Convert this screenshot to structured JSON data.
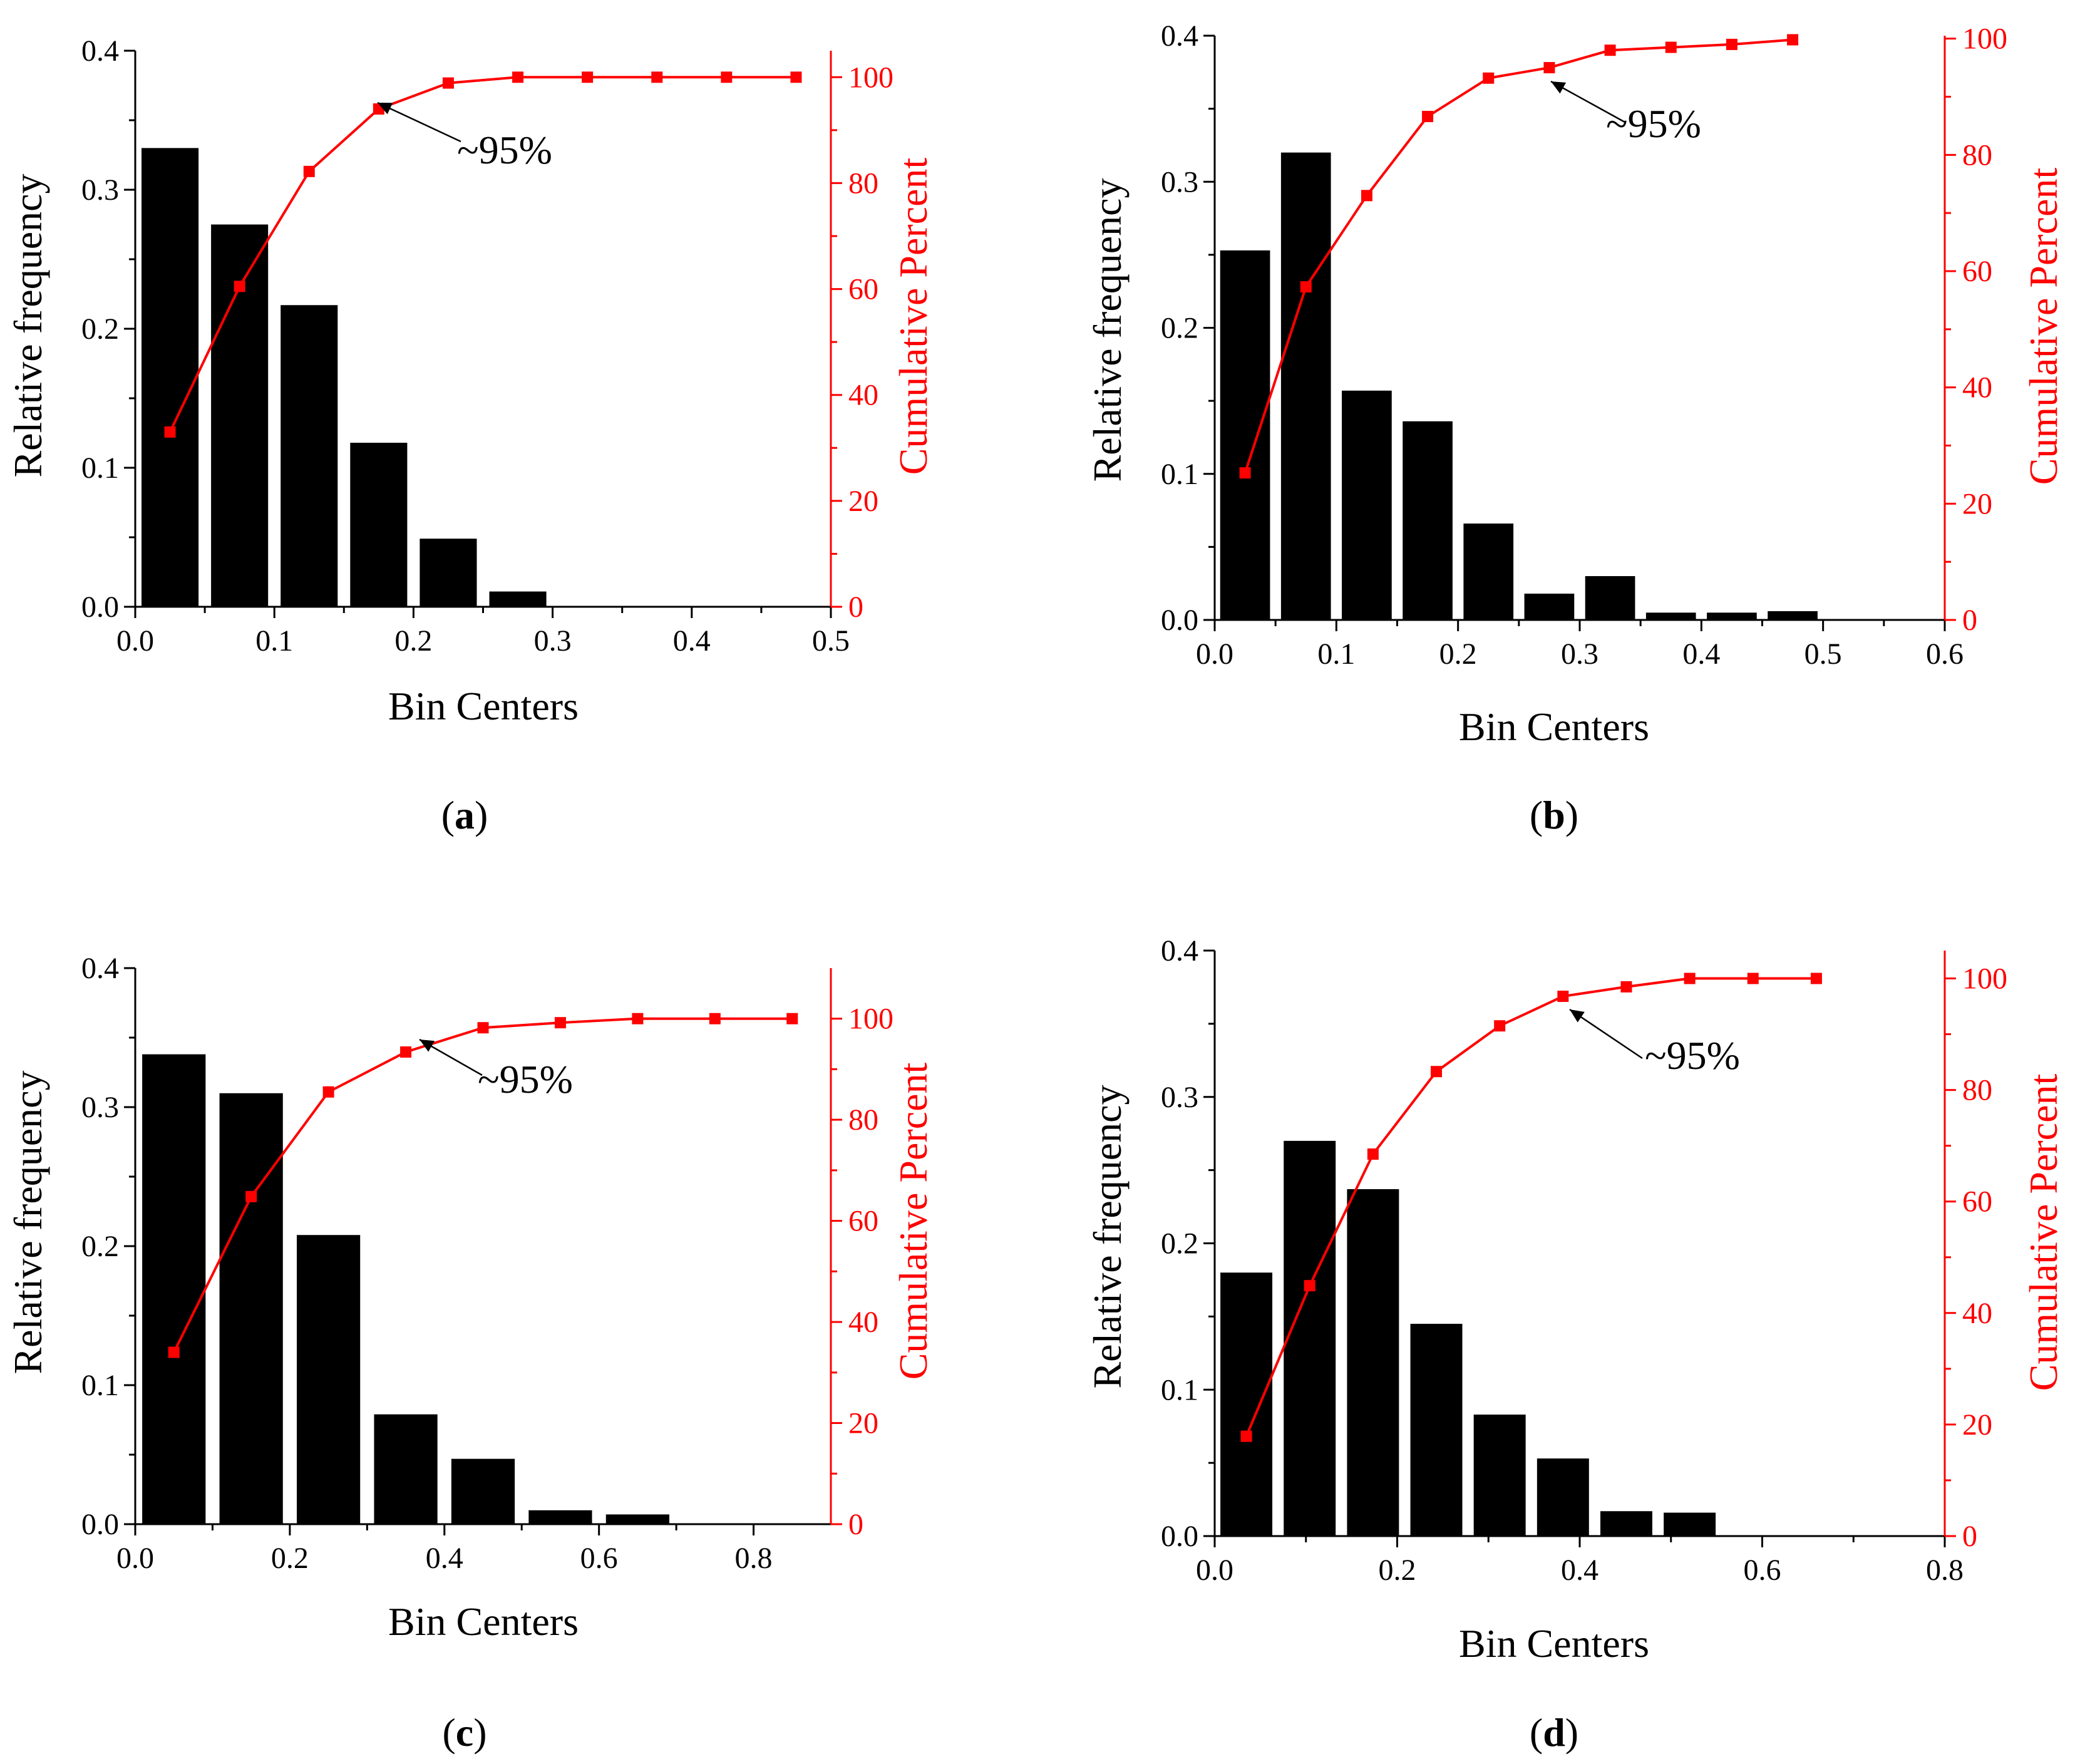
{
  "figure": {
    "axis_color": "#000000",
    "bar_color": "#000000",
    "line_color": "#ff0000",
    "panels": [
      "a",
      "b",
      "c",
      "d"
    ]
  },
  "chart_data": [
    {
      "id": "a",
      "type": "bar",
      "label": "a",
      "xlabel": "Bin Centers",
      "ylabel": "Relative frequency",
      "y2label": "Cumulative Percent",
      "annotation": "~95%",
      "annotation_target_index": 3,
      "xlim": [
        0,
        0.5
      ],
      "xticks": [
        "0.0",
        "0.1",
        "0.2",
        "0.3",
        "0.4",
        "0.5"
      ],
      "ylim": [
        0,
        0.4
      ],
      "yticks": [
        "0.0",
        "0.1",
        "0.2",
        "0.3",
        "0.4"
      ],
      "y2lim": [
        0,
        105
      ],
      "y2ticks": [
        "0",
        "20",
        "40",
        "60",
        "80",
        "100"
      ],
      "bin_width": 0.05,
      "x": [
        0.025,
        0.075,
        0.125,
        0.175,
        0.225,
        0.275,
        0.325,
        0.375,
        0.425,
        0.475
      ],
      "values": [
        0.33,
        0.275,
        0.217,
        0.118,
        0.049,
        0.011,
        0,
        0,
        0,
        0
      ],
      "cumulative": [
        33.0,
        60.5,
        82.2,
        94.0,
        98.9,
        100,
        100,
        100,
        100,
        100
      ]
    },
    {
      "id": "b",
      "type": "bar",
      "label": "b",
      "xlabel": "Bin Centers",
      "ylabel": "Relative frequency",
      "y2label": "Cumulative Percent",
      "annotation": "~95%",
      "annotation_target_index": 5,
      "xlim": [
        0,
        0.6
      ],
      "xticks": [
        "0.0",
        "0.1",
        "0.2",
        "0.3",
        "0.4",
        "0.5",
        "0.6"
      ],
      "ylim": [
        0,
        0.4
      ],
      "yticks": [
        "0.0",
        "0.1",
        "0.2",
        "0.3",
        "0.4"
      ],
      "y2lim": [
        0,
        100.5
      ],
      "y2ticks": [
        "0",
        "20",
        "40",
        "60",
        "80",
        "100"
      ],
      "bin_width": 0.05,
      "x": [
        0.025,
        0.075,
        0.125,
        0.175,
        0.225,
        0.275,
        0.325,
        0.375,
        0.425,
        0.475
      ],
      "values": [
        0.253,
        0.32,
        0.157,
        0.136,
        0.066,
        0.018,
        0.03,
        0.005,
        0.005,
        0.006
      ],
      "cumulative": [
        25.3,
        57.3,
        73.0,
        86.6,
        93.2,
        95.0,
        98.0,
        98.5,
        99.0,
        99.8
      ]
    },
    {
      "id": "c",
      "type": "bar",
      "label": "c",
      "xlabel": "Bin Centers",
      "ylabel": "Relative frequency",
      "y2label": "Cumulative Percent",
      "annotation": "~95%",
      "annotation_target_index": 3,
      "xlim": [
        0,
        0.9
      ],
      "xticks": [
        "0.0",
        "0.2",
        "0.4",
        "0.6",
        "0.8"
      ],
      "ylim": [
        0,
        0.4
      ],
      "yticks": [
        "0.0",
        "0.1",
        "0.2",
        "0.3",
        "0.4"
      ],
      "y2lim": [
        0,
        110
      ],
      "y2ticks": [
        "0",
        "20",
        "40",
        "60",
        "80",
        "100"
      ],
      "bin_width": 0.1,
      "x": [
        0.05,
        0.15,
        0.25,
        0.35,
        0.45,
        0.55,
        0.65,
        0.75,
        0.85
      ],
      "values": [
        0.338,
        0.31,
        0.208,
        0.079,
        0.047,
        0.01,
        0.007,
        0,
        0
      ],
      "cumulative": [
        34.0,
        64.8,
        85.5,
        93.4,
        98.2,
        99.2,
        100,
        100,
        100
      ]
    },
    {
      "id": "d",
      "type": "bar",
      "label": "d",
      "xlabel": "Bin Centers",
      "ylabel": "Relative frequency",
      "y2label": "Cumulative Percent",
      "annotation": "~95%",
      "annotation_target_index": 5,
      "xlim": [
        0,
        0.8
      ],
      "xticks": [
        "0.0",
        "0.2",
        "0.4",
        "0.6",
        "0.8"
      ],
      "ylim": [
        0,
        0.4
      ],
      "yticks": [
        "0.0",
        "0.1",
        "0.2",
        "0.3",
        "0.4"
      ],
      "y2lim": [
        0,
        105
      ],
      "y2ticks": [
        "0",
        "20",
        "40",
        "60",
        "80",
        "100"
      ],
      "bin_width": 0.0694,
      "x": [
        0.0347,
        0.1041,
        0.1735,
        0.2429,
        0.3123,
        0.3817,
        0.4511,
        0.5205,
        0.5899,
        0.6593
      ],
      "values": [
        0.18,
        0.27,
        0.237,
        0.145,
        0.083,
        0.053,
        0.017,
        0.016,
        0,
        0
      ],
      "cumulative": [
        17.9,
        44.9,
        68.5,
        83.3,
        91.5,
        96.8,
        98.5,
        100,
        100,
        100
      ]
    }
  ]
}
